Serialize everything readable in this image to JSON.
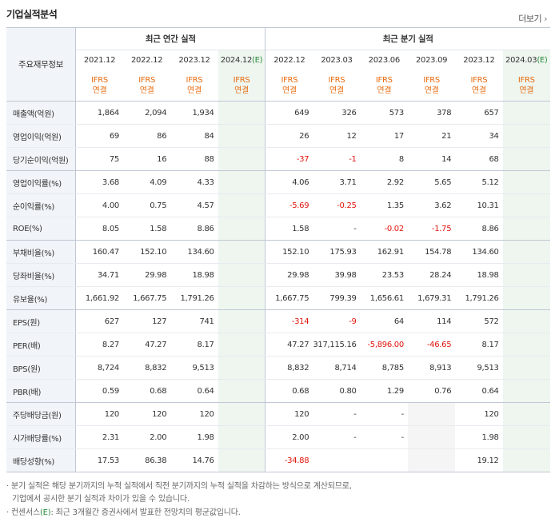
{
  "title": "기업실적분석",
  "more_label": "더보기",
  "header": {
    "corner_label": "주요재무정보",
    "annual_label": "최근 연간 실적",
    "quarter_label": "최근 분기 실적",
    "periods": [
      {
        "period": "2021.12",
        "est": "",
        "basis1": "IFRS",
        "basis2": "연결"
      },
      {
        "period": "2022.12",
        "est": "",
        "basis1": "IFRS",
        "basis2": "연결"
      },
      {
        "period": "2023.12",
        "est": "",
        "basis1": "IFRS",
        "basis2": "연결"
      },
      {
        "period": "2024.12",
        "est": "(E)",
        "basis1": "IFRS",
        "basis2": "연결"
      },
      {
        "period": "2022.12",
        "est": "",
        "basis1": "IFRS",
        "basis2": "연결"
      },
      {
        "period": "2023.03",
        "est": "",
        "basis1": "IFRS",
        "basis2": "연결"
      },
      {
        "period": "2023.06",
        "est": "",
        "basis1": "IFRS",
        "basis2": "연결"
      },
      {
        "period": "2023.09",
        "est": "",
        "basis1": "IFRS",
        "basis2": "연결"
      },
      {
        "period": "2023.12",
        "est": "",
        "basis1": "IFRS",
        "basis2": "연결"
      },
      {
        "period": "2024.03",
        "est": "(E)",
        "basis1": "IFRS",
        "basis2": "연결"
      }
    ]
  },
  "rows": [
    {
      "label": "매출액(억원)",
      "values": [
        "1,864",
        "2,094",
        "1,934",
        "",
        "649",
        "326",
        "573",
        "378",
        "657",
        ""
      ]
    },
    {
      "label": "영업이익(억원)",
      "values": [
        "69",
        "86",
        "84",
        "",
        "26",
        "12",
        "17",
        "21",
        "34",
        ""
      ]
    },
    {
      "label": "당기순이익(억원)",
      "values": [
        "75",
        "16",
        "88",
        "",
        "-37",
        "-1",
        "8",
        "14",
        "68",
        ""
      ]
    },
    {
      "label": "영업이익률(%)",
      "values": [
        "3.68",
        "4.09",
        "4.33",
        "",
        "4.06",
        "3.71",
        "2.92",
        "5.65",
        "5.12",
        ""
      ]
    },
    {
      "label": "순이익률(%)",
      "values": [
        "4.00",
        "0.75",
        "4.57",
        "",
        "-5.69",
        "-0.25",
        "1.35",
        "3.62",
        "10.31",
        ""
      ]
    },
    {
      "label": "ROE(%)",
      "values": [
        "8.05",
        "1.58",
        "8.86",
        "",
        "1.58",
        "-",
        "-0.02",
        "-1.75",
        "8.86",
        ""
      ]
    },
    {
      "label": "부채비율(%)",
      "values": [
        "160.47",
        "152.10",
        "134.60",
        "",
        "152.10",
        "175.93",
        "162.91",
        "154.78",
        "134.60",
        ""
      ]
    },
    {
      "label": "당좌비율(%)",
      "values": [
        "34.71",
        "29.98",
        "18.98",
        "",
        "29.98",
        "39.98",
        "23.53",
        "28.24",
        "18.98",
        ""
      ]
    },
    {
      "label": "유보율(%)",
      "values": [
        "1,661.92",
        "1,667.75",
        "1,791.26",
        "",
        "1,667.75",
        "799.39",
        "1,656.61",
        "1,679.31",
        "1,791.26",
        ""
      ]
    },
    {
      "label": "EPS(원)",
      "values": [
        "627",
        "127",
        "741",
        "",
        "-314",
        "-9",
        "64",
        "114",
        "572",
        ""
      ]
    },
    {
      "label": "PER(배)",
      "values": [
        "8.27",
        "47.27",
        "8.17",
        "",
        "47.27",
        "317,115.16",
        "-5,896.00",
        "-46.65",
        "8.17",
        ""
      ]
    },
    {
      "label": "BPS(원)",
      "values": [
        "8,724",
        "8,832",
        "9,513",
        "",
        "8,832",
        "8,714",
        "8,785",
        "8,913",
        "9,513",
        ""
      ]
    },
    {
      "label": "PBR(배)",
      "values": [
        "0.59",
        "0.68",
        "0.64",
        "",
        "0.68",
        "0.80",
        "1.29",
        "0.76",
        "0.64",
        ""
      ]
    },
    {
      "label": "주당배당금(원)",
      "values": [
        "120",
        "120",
        "120",
        "",
        "120",
        "-",
        "-",
        "",
        "120",
        ""
      ]
    },
    {
      "label": "시가배당률(%)",
      "values": [
        "2.31",
        "2.00",
        "1.98",
        "",
        "2.00",
        "-",
        "-",
        "",
        "1.98",
        ""
      ]
    },
    {
      "label": "배당성향(%)",
      "values": [
        "17.53",
        "86.38",
        "14.76",
        "",
        "-34.88",
        "",
        "",
        "",
        "19.12",
        ""
      ]
    }
  ],
  "footnotes": {
    "line1": "· 분기 실적은 해당 분기까지의 누적 실적에서 직전 분기까지의 누적 실적을 차감하는 방식으로 계산되므로,",
    "line2": "기업에서 공시한 분기 실적과 차이가 있을 수 있습니다.",
    "line3_prefix": "· 컨센서스",
    "line3_tag": "(E)",
    "line3_rest": ": 최근 3개월간 증권사에서 발표한 전망치의 평균값입니다."
  },
  "colors": {
    "accent_orange": "#e86c10",
    "negative_red": "#e0150d",
    "estimate_green_bg": "#eef6ef",
    "label_bg": "#f1f4f8"
  }
}
